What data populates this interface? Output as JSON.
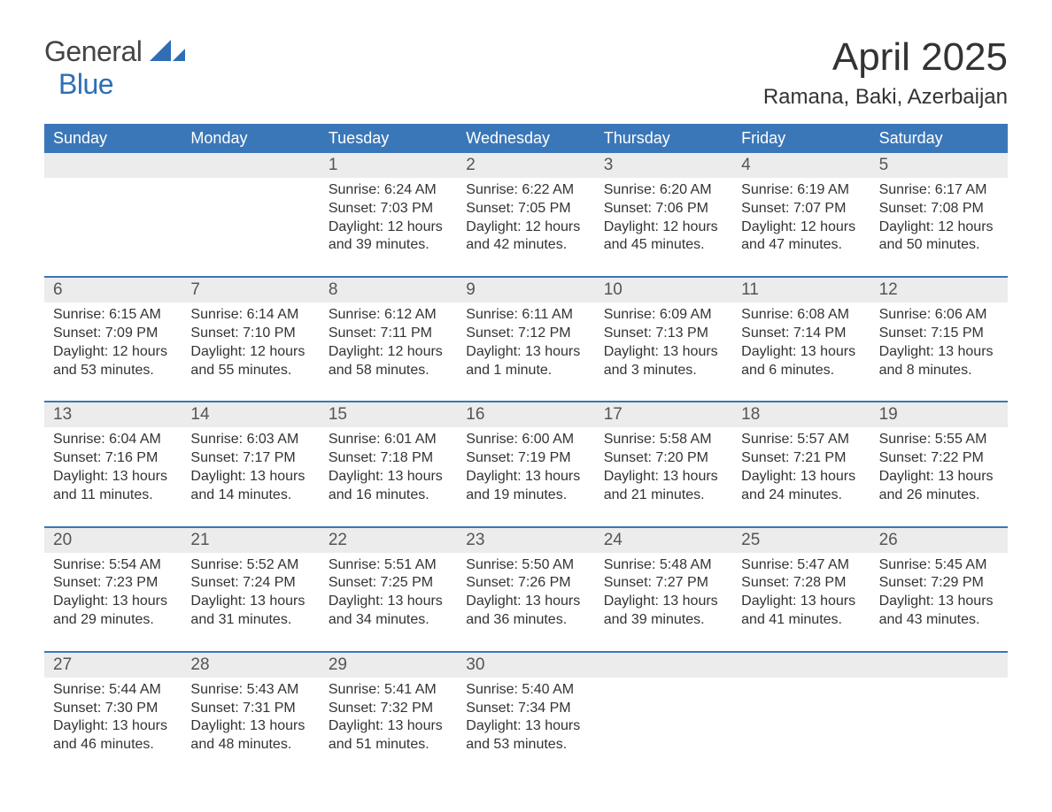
{
  "logo": {
    "line1": "General",
    "line2": "Blue",
    "accent_color": "#2f6eb5"
  },
  "title": "April 2025",
  "location": "Ramana, Baki, Azerbaijan",
  "colors": {
    "header_bg": "#3a77b8",
    "header_text": "#ffffff",
    "daynum_bg": "#ececec",
    "daynum_text": "#555555",
    "body_text": "#333333",
    "divider": "#3a77b8",
    "page_bg": "#ffffff"
  },
  "typography": {
    "title_fontsize": 44,
    "location_fontsize": 24,
    "header_fontsize": 18,
    "daynum_fontsize": 19,
    "content_fontsize": 16
  },
  "day_headers": [
    "Sunday",
    "Monday",
    "Tuesday",
    "Wednesday",
    "Thursday",
    "Friday",
    "Saturday"
  ],
  "weeks": [
    {
      "days": [
        {
          "num": "",
          "sunrise": "",
          "sunset": "",
          "daylight": ""
        },
        {
          "num": "",
          "sunrise": "",
          "sunset": "",
          "daylight": ""
        },
        {
          "num": "1",
          "sunrise": "Sunrise: 6:24 AM",
          "sunset": "Sunset: 7:03 PM",
          "daylight": "Daylight: 12 hours and 39 minutes."
        },
        {
          "num": "2",
          "sunrise": "Sunrise: 6:22 AM",
          "sunset": "Sunset: 7:05 PM",
          "daylight": "Daylight: 12 hours and 42 minutes."
        },
        {
          "num": "3",
          "sunrise": "Sunrise: 6:20 AM",
          "sunset": "Sunset: 7:06 PM",
          "daylight": "Daylight: 12 hours and 45 minutes."
        },
        {
          "num": "4",
          "sunrise": "Sunrise: 6:19 AM",
          "sunset": "Sunset: 7:07 PM",
          "daylight": "Daylight: 12 hours and 47 minutes."
        },
        {
          "num": "5",
          "sunrise": "Sunrise: 6:17 AM",
          "sunset": "Sunset: 7:08 PM",
          "daylight": "Daylight: 12 hours and 50 minutes."
        }
      ]
    },
    {
      "days": [
        {
          "num": "6",
          "sunrise": "Sunrise: 6:15 AM",
          "sunset": "Sunset: 7:09 PM",
          "daylight": "Daylight: 12 hours and 53 minutes."
        },
        {
          "num": "7",
          "sunrise": "Sunrise: 6:14 AM",
          "sunset": "Sunset: 7:10 PM",
          "daylight": "Daylight: 12 hours and 55 minutes."
        },
        {
          "num": "8",
          "sunrise": "Sunrise: 6:12 AM",
          "sunset": "Sunset: 7:11 PM",
          "daylight": "Daylight: 12 hours and 58 minutes."
        },
        {
          "num": "9",
          "sunrise": "Sunrise: 6:11 AM",
          "sunset": "Sunset: 7:12 PM",
          "daylight": "Daylight: 13 hours and 1 minute."
        },
        {
          "num": "10",
          "sunrise": "Sunrise: 6:09 AM",
          "sunset": "Sunset: 7:13 PM",
          "daylight": "Daylight: 13 hours and 3 minutes."
        },
        {
          "num": "11",
          "sunrise": "Sunrise: 6:08 AM",
          "sunset": "Sunset: 7:14 PM",
          "daylight": "Daylight: 13 hours and 6 minutes."
        },
        {
          "num": "12",
          "sunrise": "Sunrise: 6:06 AM",
          "sunset": "Sunset: 7:15 PM",
          "daylight": "Daylight: 13 hours and 8 minutes."
        }
      ]
    },
    {
      "days": [
        {
          "num": "13",
          "sunrise": "Sunrise: 6:04 AM",
          "sunset": "Sunset: 7:16 PM",
          "daylight": "Daylight: 13 hours and 11 minutes."
        },
        {
          "num": "14",
          "sunrise": "Sunrise: 6:03 AM",
          "sunset": "Sunset: 7:17 PM",
          "daylight": "Daylight: 13 hours and 14 minutes."
        },
        {
          "num": "15",
          "sunrise": "Sunrise: 6:01 AM",
          "sunset": "Sunset: 7:18 PM",
          "daylight": "Daylight: 13 hours and 16 minutes."
        },
        {
          "num": "16",
          "sunrise": "Sunrise: 6:00 AM",
          "sunset": "Sunset: 7:19 PM",
          "daylight": "Daylight: 13 hours and 19 minutes."
        },
        {
          "num": "17",
          "sunrise": "Sunrise: 5:58 AM",
          "sunset": "Sunset: 7:20 PM",
          "daylight": "Daylight: 13 hours and 21 minutes."
        },
        {
          "num": "18",
          "sunrise": "Sunrise: 5:57 AM",
          "sunset": "Sunset: 7:21 PM",
          "daylight": "Daylight: 13 hours and 24 minutes."
        },
        {
          "num": "19",
          "sunrise": "Sunrise: 5:55 AM",
          "sunset": "Sunset: 7:22 PM",
          "daylight": "Daylight: 13 hours and 26 minutes."
        }
      ]
    },
    {
      "days": [
        {
          "num": "20",
          "sunrise": "Sunrise: 5:54 AM",
          "sunset": "Sunset: 7:23 PM",
          "daylight": "Daylight: 13 hours and 29 minutes."
        },
        {
          "num": "21",
          "sunrise": "Sunrise: 5:52 AM",
          "sunset": "Sunset: 7:24 PM",
          "daylight": "Daylight: 13 hours and 31 minutes."
        },
        {
          "num": "22",
          "sunrise": "Sunrise: 5:51 AM",
          "sunset": "Sunset: 7:25 PM",
          "daylight": "Daylight: 13 hours and 34 minutes."
        },
        {
          "num": "23",
          "sunrise": "Sunrise: 5:50 AM",
          "sunset": "Sunset: 7:26 PM",
          "daylight": "Daylight: 13 hours and 36 minutes."
        },
        {
          "num": "24",
          "sunrise": "Sunrise: 5:48 AM",
          "sunset": "Sunset: 7:27 PM",
          "daylight": "Daylight: 13 hours and 39 minutes."
        },
        {
          "num": "25",
          "sunrise": "Sunrise: 5:47 AM",
          "sunset": "Sunset: 7:28 PM",
          "daylight": "Daylight: 13 hours and 41 minutes."
        },
        {
          "num": "26",
          "sunrise": "Sunrise: 5:45 AM",
          "sunset": "Sunset: 7:29 PM",
          "daylight": "Daylight: 13 hours and 43 minutes."
        }
      ]
    },
    {
      "days": [
        {
          "num": "27",
          "sunrise": "Sunrise: 5:44 AM",
          "sunset": "Sunset: 7:30 PM",
          "daylight": "Daylight: 13 hours and 46 minutes."
        },
        {
          "num": "28",
          "sunrise": "Sunrise: 5:43 AM",
          "sunset": "Sunset: 7:31 PM",
          "daylight": "Daylight: 13 hours and 48 minutes."
        },
        {
          "num": "29",
          "sunrise": "Sunrise: 5:41 AM",
          "sunset": "Sunset: 7:32 PM",
          "daylight": "Daylight: 13 hours and 51 minutes."
        },
        {
          "num": "30",
          "sunrise": "Sunrise: 5:40 AM",
          "sunset": "Sunset: 7:34 PM",
          "daylight": "Daylight: 13 hours and 53 minutes."
        },
        {
          "num": "",
          "sunrise": "",
          "sunset": "",
          "daylight": ""
        },
        {
          "num": "",
          "sunrise": "",
          "sunset": "",
          "daylight": ""
        },
        {
          "num": "",
          "sunrise": "",
          "sunset": "",
          "daylight": ""
        }
      ]
    }
  ]
}
